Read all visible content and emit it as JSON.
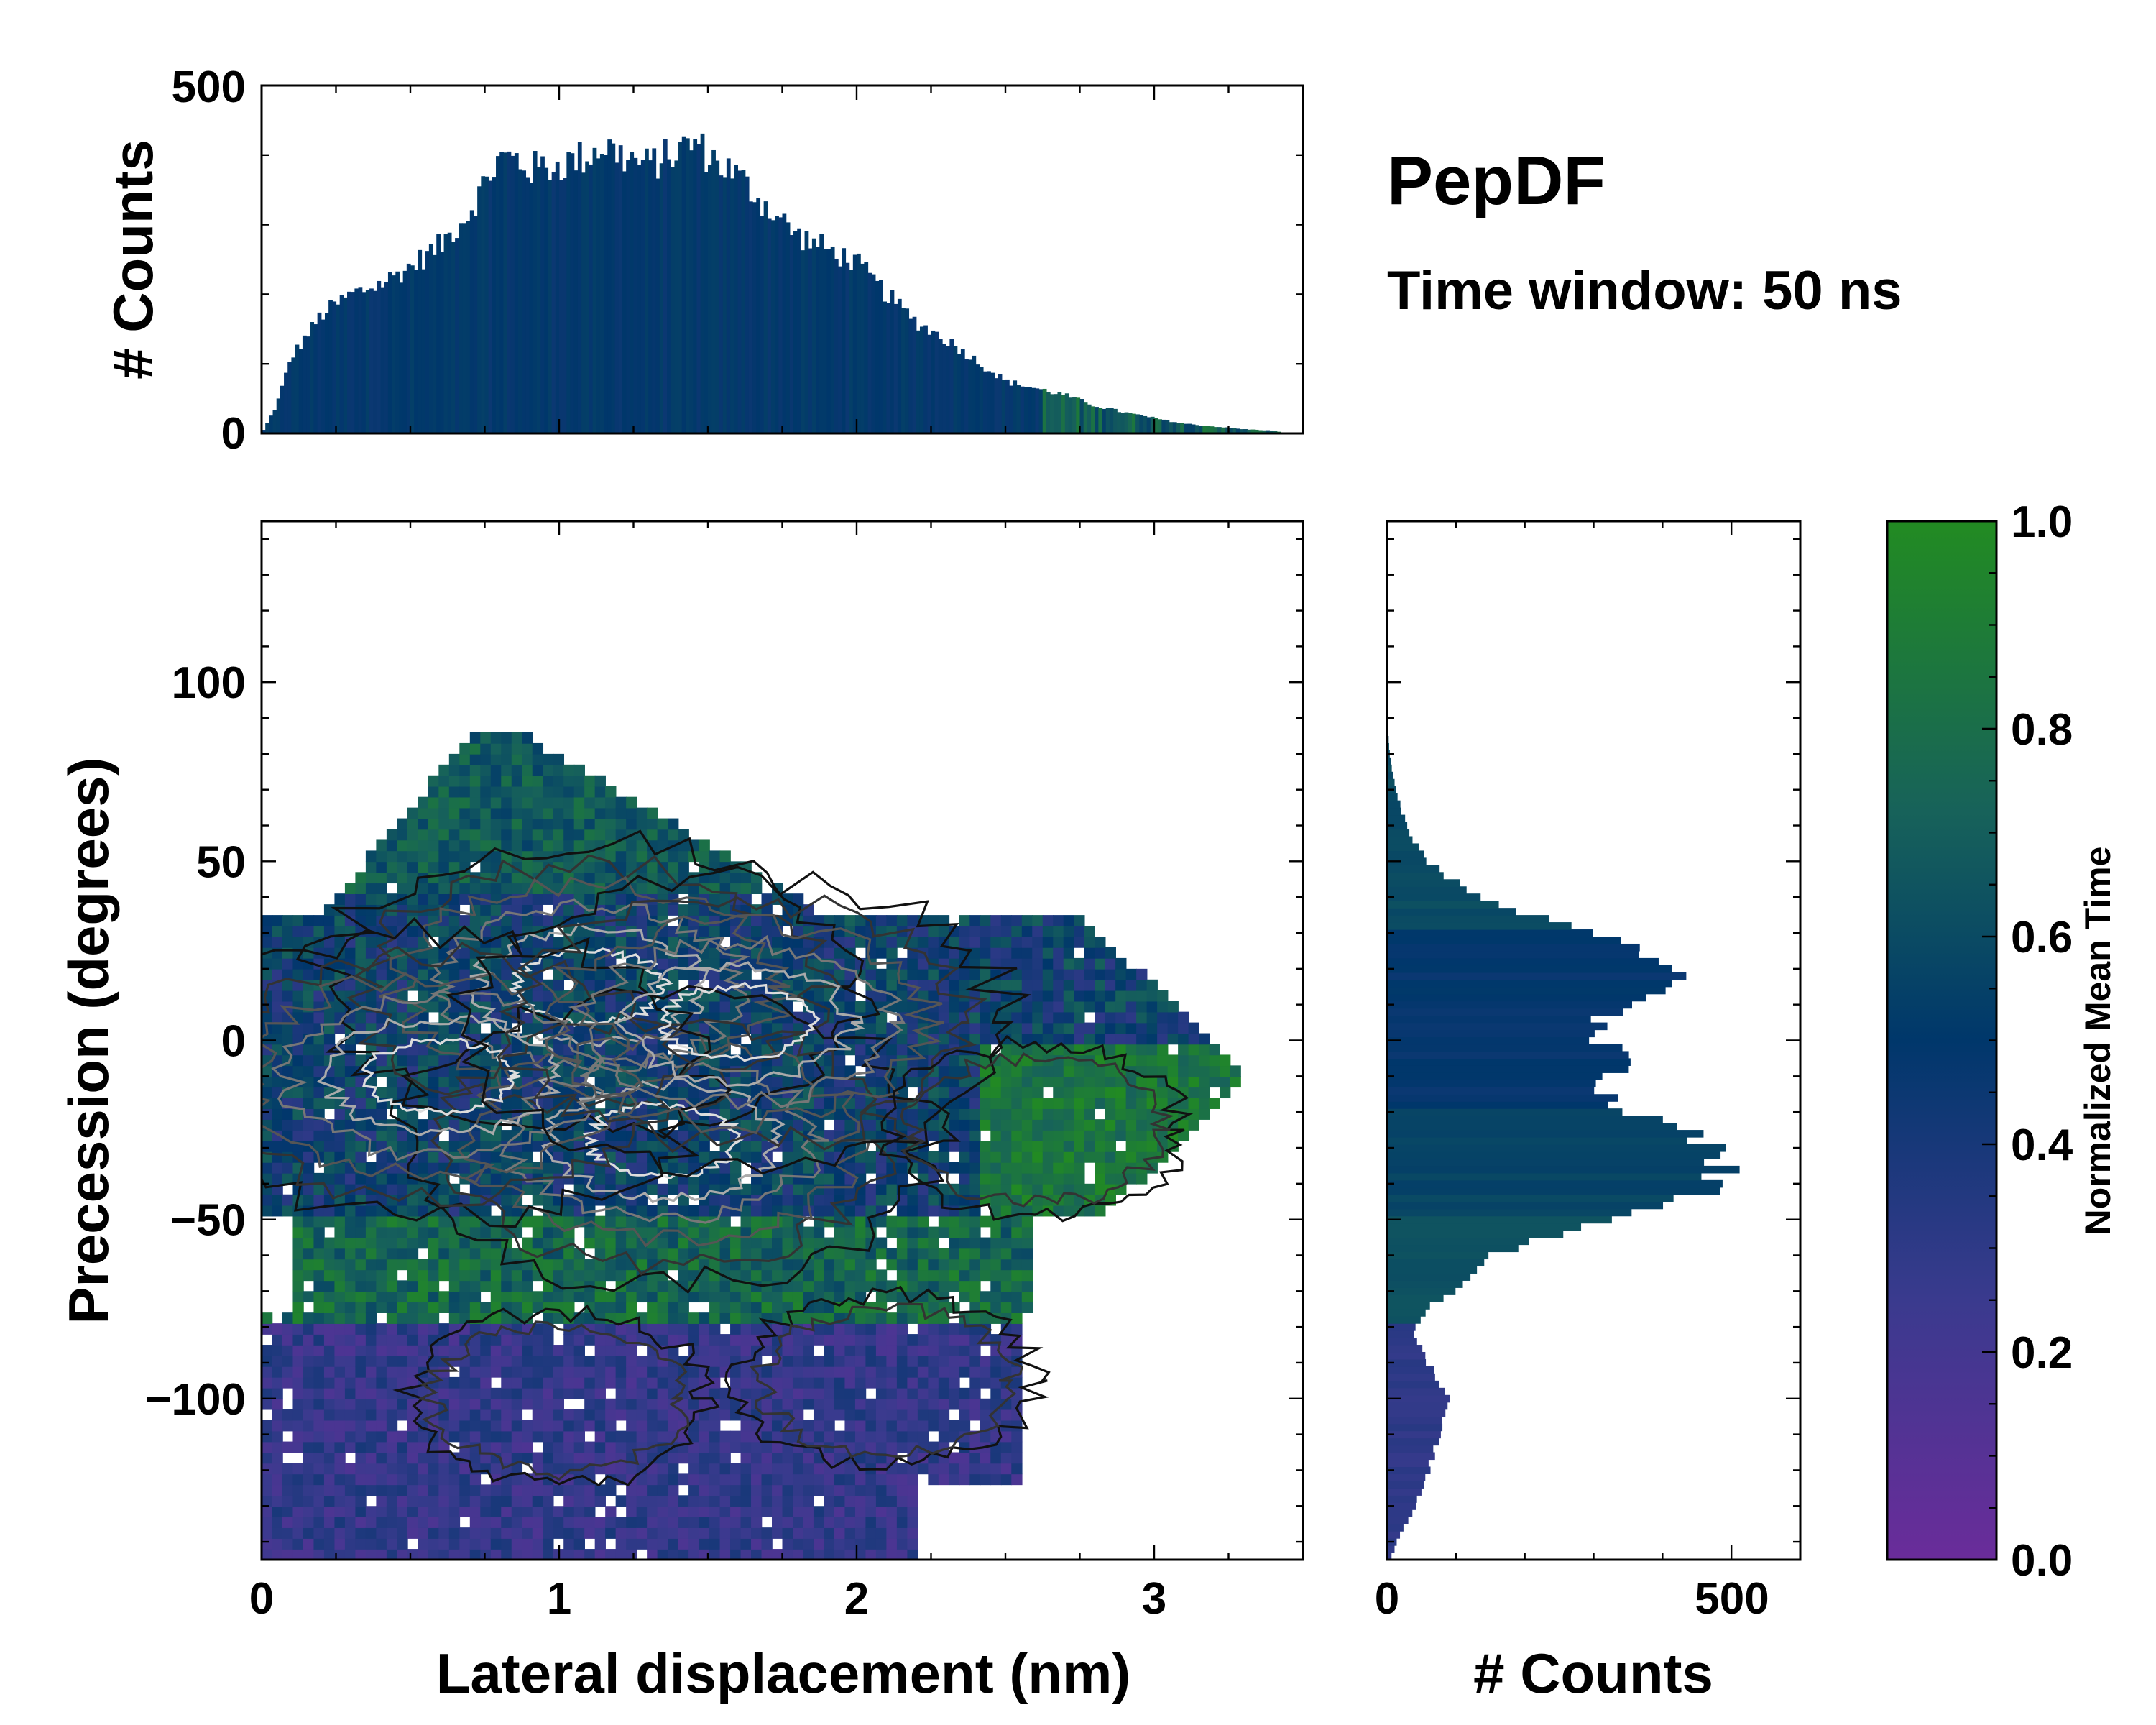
{
  "chart_data": [
    {
      "id": "top-histogram",
      "type": "bar",
      "title": "",
      "xlabel": "",
      "ylabel": "# Counts",
      "xlim": [
        0,
        3.5
      ],
      "ylim": [
        0,
        500
      ],
      "yticks": [
        0,
        500
      ],
      "bin_width": 0.0125,
      "profile_x": [
        0,
        0.05,
        0.1,
        0.2,
        0.3,
        0.4,
        0.5,
        0.6,
        0.7,
        0.75,
        0.8,
        0.85,
        0.9,
        1.0,
        1.1,
        1.15,
        1.2,
        1.3,
        1.4,
        1.45,
        1.5,
        1.6,
        1.7,
        1.8,
        1.9,
        2.0,
        2.1,
        2.2,
        2.3,
        2.4,
        2.5,
        2.6,
        2.7,
        2.8,
        2.9,
        3.0,
        3.1,
        3.2,
        3.3,
        3.4,
        3.45
      ],
      "profile_counts": [
        0,
        40,
        110,
        170,
        200,
        215,
        240,
        270,
        320,
        360,
        395,
        395,
        380,
        385,
        400,
        415,
        400,
        385,
        405,
        420,
        400,
        370,
        325,
        285,
        265,
        245,
        200,
        160,
        135,
        105,
        75,
        65,
        55,
        40,
        30,
        22,
        14,
        10,
        6,
        4,
        0
      ]
    },
    {
      "id": "right-histogram",
      "type": "bar",
      "orientation": "horizontal",
      "xlabel": "# Counts",
      "ylabel": "",
      "xlim": [
        0,
        600
      ],
      "xticks": [
        0,
        500
      ],
      "ylim": [
        -145,
        145
      ],
      "bin_width": 2,
      "profile_y": [
        -145,
        -140,
        -130,
        -120,
        -110,
        -100,
        -95,
        -90,
        -85,
        -80,
        -75,
        -70,
        -65,
        -60,
        -55,
        -50,
        -45,
        -40,
        -35,
        -30,
        -25,
        -20,
        -15,
        -10,
        -5,
        0,
        5,
        10,
        15,
        20,
        25,
        30,
        35,
        40,
        45,
        50,
        55,
        60,
        65,
        70,
        75,
        80,
        85,
        90
      ],
      "profile_counts": [
        5,
        15,
        40,
        60,
        80,
        85,
        75,
        60,
        45,
        40,
        60,
        95,
        120,
        150,
        230,
        320,
        420,
        480,
        500,
        470,
        420,
        360,
        320,
        330,
        340,
        310,
        300,
        340,
        390,
        420,
        380,
        300,
        200,
        140,
        90,
        60,
        40,
        30,
        20,
        12,
        8,
        4,
        2,
        0
      ]
    },
    {
      "id": "main-2d-histogram",
      "type": "heatmap",
      "xlabel": "Lateral displacement (nm)",
      "ylabel": "Precession (degrees)",
      "xlim": [
        0,
        3.5
      ],
      "ylim": [
        -145,
        145
      ],
      "xticks": [
        0,
        1,
        2,
        3
      ],
      "yticks": [
        -100,
        -50,
        0,
        50,
        100
      ],
      "ytick_labels": [
        "−100",
        "−50",
        "0",
        "50",
        "100"
      ],
      "density_centers": [
        {
          "x": 1.1,
          "y": 15,
          "weight": 1.0
        },
        {
          "x": 1.35,
          "y": -28,
          "weight": 1.0
        },
        {
          "x": 0.6,
          "y": -10,
          "weight": 0.55
        },
        {
          "x": 1.6,
          "y": 5,
          "weight": 0.55
        },
        {
          "x": 1.0,
          "y": -100,
          "weight": 0.22
        },
        {
          "x": 2.1,
          "y": -95,
          "weight": 0.18
        },
        {
          "x": 2.6,
          "y": -25,
          "weight": 0.25
        }
      ],
      "contour_levels": 6
    },
    {
      "id": "colorbar",
      "type": "colorbar",
      "label": "Normalized Mean Time",
      "range": [
        0.0,
        1.0
      ],
      "ticks": [
        0.0,
        0.2,
        0.4,
        0.6,
        0.8,
        1.0
      ],
      "tick_labels": [
        "0.0",
        "0.2",
        "0.4",
        "0.6",
        "0.8",
        "1.0"
      ],
      "colormap": [
        "#6a2c9a",
        "#3a3a8e",
        "#00376b",
        "#17625a",
        "#228b22"
      ]
    }
  ],
  "annotations": {
    "title": "PepDF",
    "subtitle": "Time window: 50 ns"
  }
}
